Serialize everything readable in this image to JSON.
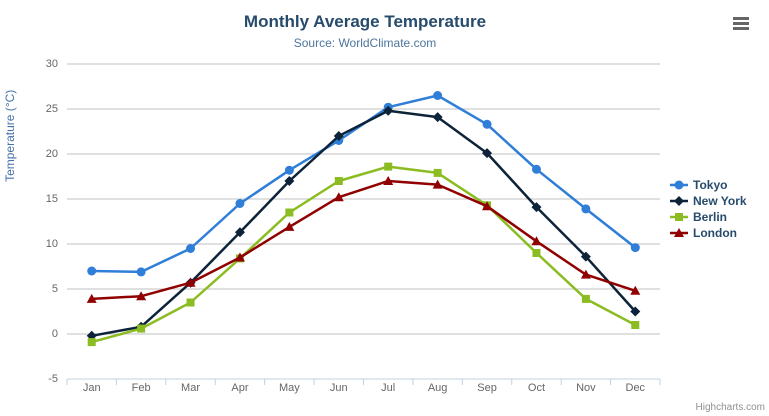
{
  "chart_data": {
    "type": "line",
    "title": "Monthly Average Temperature",
    "subtitle": "Source: WorldClimate.com",
    "xlabel": "",
    "ylabel": "Temperature (°C)",
    "categories": [
      "Jan",
      "Feb",
      "Mar",
      "Apr",
      "May",
      "Jun",
      "Jul",
      "Aug",
      "Sep",
      "Oct",
      "Nov",
      "Dec"
    ],
    "ylim": [
      -5,
      30
    ],
    "yticks": [
      -5,
      0,
      5,
      10,
      15,
      20,
      25,
      30
    ],
    "grid": true,
    "legend_position": "right",
    "series": [
      {
        "name": "Tokyo",
        "color": "#2f7ed8",
        "marker": "circle",
        "values": [
          7.0,
          6.9,
          9.5,
          14.5,
          18.2,
          21.5,
          25.2,
          26.5,
          23.3,
          18.3,
          13.9,
          9.6
        ]
      },
      {
        "name": "New York",
        "color": "#0d233a",
        "marker": "diamond",
        "values": [
          -0.2,
          0.8,
          5.7,
          11.3,
          17.0,
          22.0,
          24.8,
          24.1,
          20.1,
          14.1,
          8.6,
          2.5
        ]
      },
      {
        "name": "Berlin",
        "color": "#8bbc21",
        "marker": "square",
        "values": [
          -0.9,
          0.6,
          3.5,
          8.4,
          13.5,
          17.0,
          18.6,
          17.9,
          14.3,
          9.0,
          3.9,
          1.0
        ]
      },
      {
        "name": "London",
        "color": "#910000",
        "marker": "triangle",
        "values": [
          3.9,
          4.2,
          5.7,
          8.5,
          11.9,
          15.2,
          17.0,
          16.6,
          14.2,
          10.3,
          6.6,
          4.8
        ]
      }
    ],
    "colors": {
      "grid_line": "#c0c0c0",
      "axis_line": "#c0d0e0",
      "title_text": "#274b6d",
      "subtitle_text": "#4d759e",
      "axis_label_text": "#666666",
      "y_axis_title_text": "#4572a7",
      "legend_text": "#274b6d",
      "credits_text": "#909090"
    },
    "credits": "Highcharts.com"
  },
  "menu": {
    "icon": "hamburger-icon"
  }
}
